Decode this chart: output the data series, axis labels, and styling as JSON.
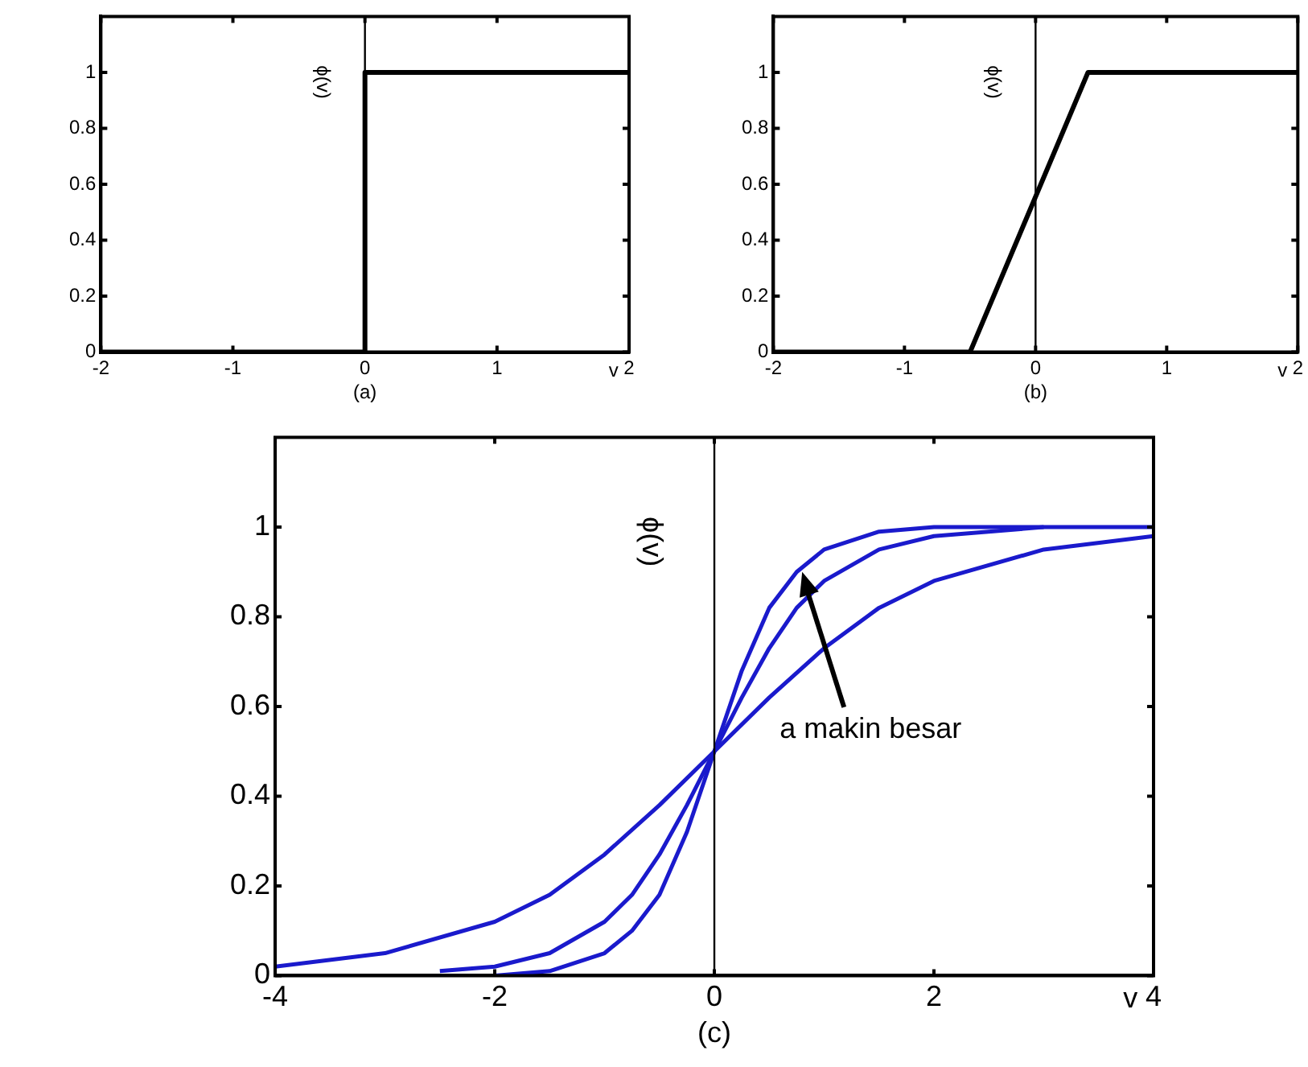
{
  "chart_data": [
    {
      "type": "line",
      "xlabel": "v",
      "ylabel": "ϕ(v)",
      "annotations": [
        "(a)"
      ],
      "x": [
        -2,
        0,
        0,
        2
      ],
      "values": [
        0,
        0,
        1,
        1
      ],
      "color": "#000000",
      "xlim": [
        -2,
        2
      ],
      "ylim": [
        0,
        1.2
      ],
      "xticks": [
        -2,
        -1,
        0,
        1,
        2
      ],
      "yticks": [
        0,
        0.2,
        0.4,
        0.6,
        0.8,
        1
      ],
      "grid": false,
      "legend": false,
      "ref_lines": [
        {
          "axis": "x",
          "value": 0,
          "color": "#000000"
        }
      ]
    },
    {
      "type": "line",
      "xlabel": "v",
      "ylabel": "ϕ(v)",
      "annotations": [
        "(b)"
      ],
      "x": [
        -2,
        -0.5,
        0.4,
        2
      ],
      "values": [
        0,
        0,
        1,
        1
      ],
      "color": "#000000",
      "xlim": [
        -2,
        2
      ],
      "ylim": [
        0,
        1.2
      ],
      "xticks": [
        -2,
        -1,
        0,
        1,
        2
      ],
      "yticks": [
        0,
        0.2,
        0.4,
        0.6,
        0.8,
        1
      ],
      "grid": false,
      "legend": false,
      "ref_lines": [
        {
          "axis": "x",
          "value": 0,
          "color": "#000000"
        }
      ]
    },
    {
      "type": "line",
      "xlabel": "v",
      "ylabel": "ϕ(v)",
      "annotations": [
        "(c)",
        {
          "text": "a makin besar",
          "x": 0.8,
          "y": 0.9
        }
      ],
      "xlim": [
        -4,
        4
      ],
      "ylim": [
        0,
        1.2
      ],
      "xticks": [
        -4,
        -2,
        0,
        2,
        4
      ],
      "yticks": [
        0,
        0.2,
        0.4,
        0.6,
        0.8,
        1
      ],
      "grid": false,
      "legend": false,
      "ref_lines": [
        {
          "axis": "x",
          "value": 0,
          "color": "#000000"
        }
      ],
      "series": [
        {
          "color": "#1a1acc",
          "x": [
            -4,
            -3,
            -2,
            -1.5,
            -1,
            -0.5,
            0,
            0.5,
            1,
            1.5,
            2,
            3,
            4
          ],
          "values": [
            0.02,
            0.05,
            0.12,
            0.18,
            0.27,
            0.38,
            0.5,
            0.62,
            0.73,
            0.82,
            0.88,
            0.95,
            0.98
          ]
        },
        {
          "color": "#1a1acc",
          "x": [
            -2.5,
            -2,
            -1.5,
            -1,
            -0.75,
            -0.5,
            -0.25,
            0,
            0.25,
            0.5,
            0.75,
            1,
            1.5,
            2,
            3
          ],
          "values": [
            0.01,
            0.02,
            0.05,
            0.12,
            0.18,
            0.27,
            0.38,
            0.5,
            0.62,
            0.73,
            0.82,
            0.88,
            0.95,
            0.98,
            1
          ]
        },
        {
          "color": "#1a1acc",
          "x": [
            -2,
            -1.5,
            -1,
            -0.75,
            -0.5,
            -0.25,
            0,
            0.25,
            0.5,
            0.75,
            1,
            1.5,
            2,
            4
          ],
          "values": [
            0,
            0.01,
            0.05,
            0.1,
            0.18,
            0.32,
            0.5,
            0.68,
            0.82,
            0.9,
            0.95,
            0.99,
            1,
            1
          ]
        }
      ]
    }
  ]
}
